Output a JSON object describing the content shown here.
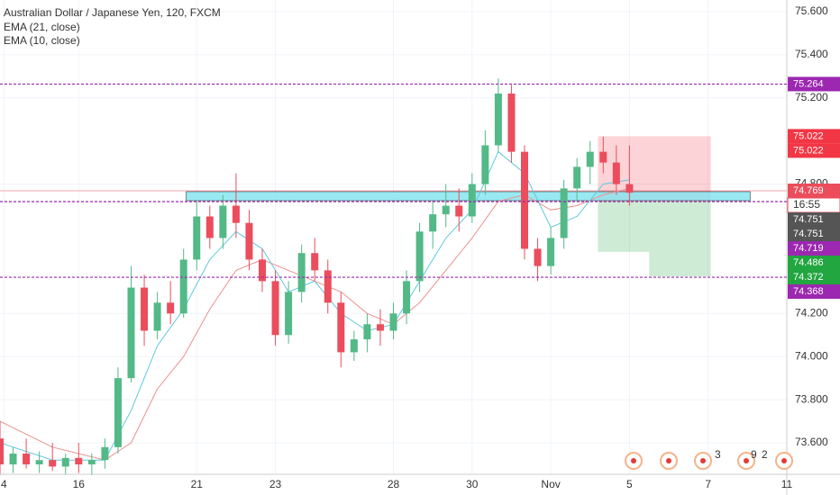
{
  "chart_data": {
    "type": "candlestick",
    "title": "Australian Dollar / Japanese Yen, 120, FXCM",
    "indicators": [
      "EMA (21, close)",
      "EMA (10, close)"
    ],
    "up_color": "#53b987",
    "down_color": "#eb4d5c",
    "candles": [
      [
        73.62,
        73.7,
        73.45,
        73.5
      ],
      [
        73.5,
        73.58,
        73.46,
        73.55
      ],
      [
        73.55,
        73.62,
        73.48,
        73.5
      ],
      [
        73.5,
        73.56,
        73.46,
        73.52
      ],
      [
        73.52,
        73.6,
        73.47,
        73.49
      ],
      [
        73.49,
        73.55,
        73.45,
        73.53
      ],
      [
        73.53,
        73.6,
        73.46,
        73.5
      ],
      [
        73.5,
        73.55,
        73.45,
        73.52
      ],
      [
        73.52,
        73.62,
        73.48,
        73.58
      ],
      [
        73.58,
        73.95,
        73.55,
        73.9
      ],
      [
        73.9,
        74.42,
        73.88,
        74.32
      ],
      [
        74.32,
        74.38,
        74.05,
        74.12
      ],
      [
        74.12,
        74.3,
        74.08,
        74.25
      ],
      [
        74.25,
        74.35,
        74.15,
        74.2
      ],
      [
        74.2,
        74.5,
        74.18,
        74.45
      ],
      [
        74.45,
        74.72,
        74.4,
        74.65
      ],
      [
        74.65,
        74.7,
        74.5,
        74.55
      ],
      [
        74.55,
        74.75,
        74.5,
        74.7
      ],
      [
        74.7,
        74.85,
        74.55,
        74.62
      ],
      [
        74.62,
        74.68,
        74.4,
        74.45
      ],
      [
        74.45,
        74.5,
        74.3,
        74.35
      ],
      [
        74.35,
        74.4,
        74.05,
        74.1
      ],
      [
        74.1,
        74.35,
        74.06,
        74.3
      ],
      [
        74.3,
        74.52,
        74.25,
        74.48
      ],
      [
        74.48,
        74.55,
        74.35,
        74.4
      ],
      [
        74.4,
        74.45,
        74.2,
        74.25
      ],
      [
        74.25,
        74.3,
        73.95,
        74.02
      ],
      [
        74.02,
        74.12,
        73.98,
        74.08
      ],
      [
        74.08,
        74.2,
        74.02,
        74.15
      ],
      [
        74.15,
        74.22,
        74.05,
        74.12
      ],
      [
        74.12,
        74.25,
        74.08,
        74.2
      ],
      [
        74.2,
        74.4,
        74.15,
        74.35
      ],
      [
        74.35,
        74.62,
        74.3,
        74.58
      ],
      [
        74.58,
        74.72,
        74.5,
        74.66
      ],
      [
        74.66,
        74.8,
        74.6,
        74.7
      ],
      [
        74.7,
        74.78,
        74.58,
        74.65
      ],
      [
        74.65,
        74.85,
        74.62,
        74.8
      ],
      [
        74.8,
        75.05,
        74.75,
        74.98
      ],
      [
        74.98,
        75.29,
        74.95,
        75.22
      ],
      [
        75.22,
        75.26,
        74.9,
        74.95
      ],
      [
        74.95,
        74.98,
        74.45,
        74.5
      ],
      [
        74.5,
        74.55,
        74.35,
        74.42
      ],
      [
        74.42,
        74.6,
        74.38,
        74.55
      ],
      [
        74.55,
        74.82,
        74.5,
        74.78
      ],
      [
        74.78,
        74.92,
        74.72,
        74.88
      ],
      [
        74.88,
        75.0,
        74.8,
        74.95
      ],
      [
        74.95,
        75.02,
        74.85,
        74.9
      ],
      [
        74.9,
        74.98,
        74.75,
        74.8
      ],
      [
        74.8,
        74.98,
        74.7,
        74.76
      ]
    ],
    "series": [
      {
        "name": "EMA (21, close)",
        "color": "#ef8f8f",
        "x": [
          0,
          4,
          8,
          10,
          12,
          14,
          16,
          18,
          20,
          22,
          24,
          26,
          28,
          30,
          32,
          34,
          36,
          38,
          40,
          42,
          44,
          46,
          48
        ],
        "values": [
          73.7,
          73.58,
          73.52,
          73.6,
          73.85,
          74.0,
          74.22,
          74.4,
          74.45,
          74.4,
          74.35,
          74.3,
          74.2,
          74.15,
          74.25,
          74.4,
          74.55,
          74.72,
          74.75,
          74.68,
          74.7,
          74.75,
          74.78
        ]
      },
      {
        "name": "EMA (10, close)",
        "color": "#5fc9dc",
        "x": [
          0,
          4,
          8,
          10,
          12,
          14,
          16,
          18,
          20,
          22,
          24,
          26,
          28,
          30,
          32,
          34,
          36,
          38,
          40,
          42,
          44,
          46,
          48
        ],
        "values": [
          73.6,
          73.52,
          73.52,
          73.75,
          74.05,
          74.22,
          74.45,
          74.58,
          74.5,
          74.3,
          74.35,
          74.2,
          74.12,
          74.15,
          74.35,
          74.55,
          74.68,
          74.95,
          74.85,
          74.6,
          74.65,
          74.8,
          74.82
        ]
      }
    ],
    "xlim": [
      0,
      60
    ],
    "xticks": [
      {
        "value": 0.3,
        "label": "4"
      },
      {
        "value": 6,
        "label": "16"
      },
      {
        "value": 15,
        "label": "21"
      },
      {
        "value": 21,
        "label": "23"
      },
      {
        "value": 30,
        "label": "28"
      },
      {
        "value": 36,
        "label": "30"
      },
      {
        "value": 42,
        "label": "Nov"
      },
      {
        "value": 48,
        "label": "5"
      },
      {
        "value": 54,
        "label": "7"
      },
      {
        "value": 60,
        "label": "11"
      }
    ],
    "ylim": [
      73.454,
      75.654
    ],
    "yticks": [
      {
        "value": 75.6,
        "label": "75.600"
      },
      {
        "value": 75.4,
        "label": "75.400"
      },
      {
        "value": 75.2,
        "label": "75.200"
      },
      {
        "value": 74.8,
        "label": "74.800"
      },
      {
        "value": 74.2,
        "label": "74.200"
      },
      {
        "value": 74.0,
        "label": "74.000"
      },
      {
        "value": 73.8,
        "label": "73.800"
      },
      {
        "value": 73.6,
        "label": "73.600"
      }
    ],
    "grid": true,
    "levels": [
      75.264,
      74.719,
      74.368
    ],
    "level_color": "#9c27b0",
    "last_price": 74.769,
    "zone": {
      "low": 74.723,
      "high": 74.765,
      "x_start": 14.2,
      "x_end": 57.2,
      "color": "#7fe3ef"
    },
    "position": {
      "entry": 74.719,
      "stop": 75.022,
      "target1": 74.486,
      "target2": 74.372,
      "x_start": 45.6,
      "x_mid": 49.5,
      "x_end": 54.2
    },
    "price_labels": [
      {
        "value": 75.264,
        "label": "75.264",
        "color": "#9c27b0"
      },
      {
        "value": 75.022,
        "label": "75.022",
        "color": "#f23645"
      },
      {
        "value": 75.022,
        "label": "75.022",
        "color": "#f23645"
      },
      {
        "value": 74.769,
        "label": "74.769",
        "color": "#eb4d5c"
      },
      {
        "value": 74.751,
        "label": "74.751",
        "color": "#555555"
      },
      {
        "value": 74.751,
        "label": "74.751",
        "color": "#555555"
      },
      {
        "value": 74.719,
        "label": "74.719",
        "color": "#9c27b0"
      },
      {
        "value": 74.486,
        "label": "74.486",
        "color": "#22a640"
      },
      {
        "value": 74.372,
        "label": "74.372",
        "color": "#22a640"
      },
      {
        "value": 74.368,
        "label": "74.368",
        "color": "#9c27b0"
      }
    ],
    "countdown": "16:55",
    "event_badges": [
      "3",
      "9",
      "2"
    ]
  }
}
